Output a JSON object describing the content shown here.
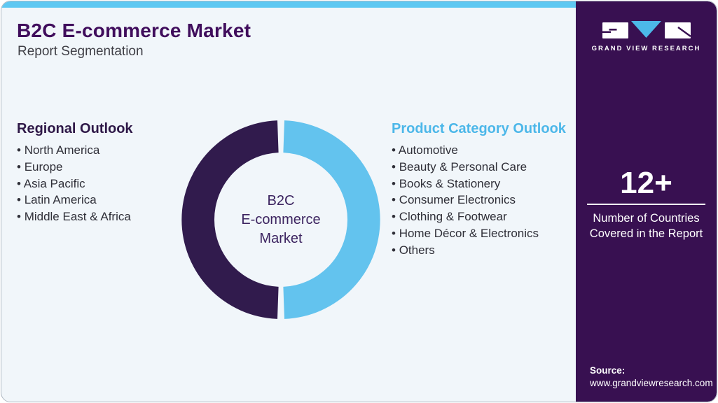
{
  "header": {
    "title": "B2C E-commerce Market",
    "subtitle": "Report Segmentation"
  },
  "regional": {
    "heading": "Regional Outlook",
    "items": [
      "North America",
      "Europe",
      "Asia Pacific",
      "Latin America",
      "Middle East & Africa"
    ]
  },
  "product": {
    "heading": "Product Category Outlook",
    "items": [
      "Automotive",
      "Beauty & Personal Care",
      "Books & Stationery",
      "Consumer Electronics",
      "Clothing & Footwear",
      "Home Décor & Electronics",
      "Others"
    ]
  },
  "chart_data": {
    "type": "pie",
    "donut": true,
    "title": "B2C E-commerce Market segmentation donut",
    "center_label": "B2C\nE-commerce\nMarket",
    "segments": [
      {
        "label": "Regional Outlook",
        "value": 50,
        "color": "#311b4d"
      },
      {
        "label": "Product Category Outlook",
        "value": 50,
        "color": "#63c3ee"
      }
    ],
    "legend_position": "none"
  },
  "sidebar": {
    "brand": "GRAND VIEW RESEARCH",
    "stat_value": "12+",
    "stat_caption": "Number of Countries\nCovered in the Report",
    "source_label": "Source:",
    "source_url": "www.grandviewresearch.com"
  },
  "colors": {
    "accent_blue": "#5ec8f2",
    "brand_purple": "#381051",
    "title_purple": "#400d5c",
    "heading_blue": "#4cb7e9",
    "donut_purple": "#311b4d",
    "donut_blue": "#63c3ee",
    "background": "#f1f6fa"
  }
}
